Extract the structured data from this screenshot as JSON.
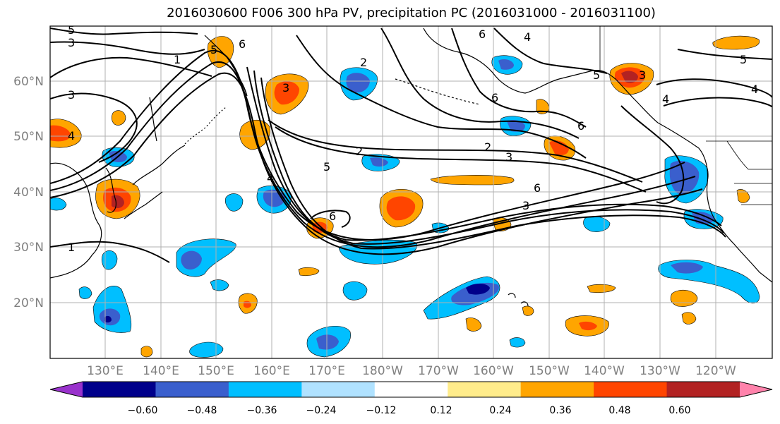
{
  "title": "2016030600 F006 300 hPa PV, precipitation PC (2016031000 - 2016031100)",
  "lat_labels": [
    "60°N",
    "50°N",
    "40°N",
    "30°N",
    "20°N"
  ],
  "lon_labels": [
    "130°E",
    "140°E",
    "150°E",
    "160°E",
    "170°E",
    "180°W",
    "170°W",
    "160°W",
    "150°W",
    "140°W",
    "130°W",
    "120°W"
  ],
  "colorbar": {
    "ticks": [
      "−0.60",
      "−0.48",
      "−0.36",
      "−0.24",
      "−0.12",
      "0.12",
      "0.24",
      "0.36",
      "0.48",
      "0.60"
    ],
    "colors": [
      "#9932cc",
      "#00008b",
      "#3a5fcd",
      "#00bfff",
      "#b0e2ff",
      "#ffffff",
      "#ffec8b",
      "#ffa500",
      "#ff4500",
      "#b22222",
      "#ff82ab"
    ]
  },
  "contour_labels": [
    "5",
    "3",
    "6",
    "5",
    "1",
    "3",
    "4",
    "2",
    "5",
    "6",
    "6",
    "4",
    "6",
    "3",
    "5",
    "4",
    "2",
    "3",
    "6",
    "3",
    "6",
    "3",
    "4",
    "4",
    "1",
    "5",
    "2"
  ]
}
